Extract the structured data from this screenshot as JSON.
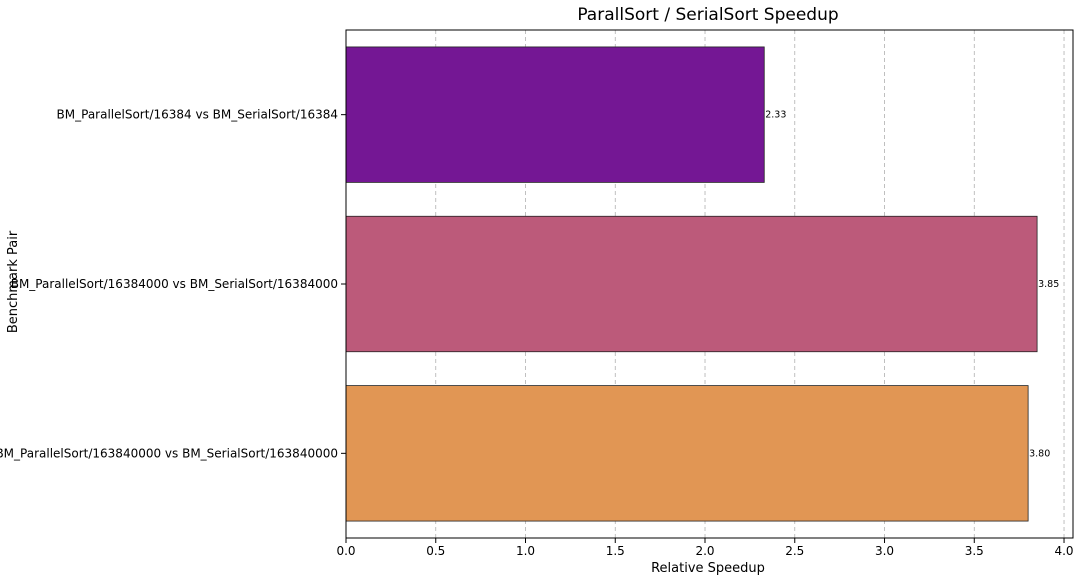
{
  "chart_data": {
    "type": "bar",
    "orientation": "horizontal",
    "title": "ParallSort / SerialSort Speedup",
    "xlabel": "Relative Speedup",
    "ylabel": "Benchmark Pair",
    "xlim": [
      0,
      4.05
    ],
    "x_ticks": [
      "0.0",
      "0.5",
      "1.0",
      "1.5",
      "2.0",
      "2.5",
      "3.0",
      "3.5",
      "4.0"
    ],
    "grid": "x-dashed",
    "categories": [
      "BM_ParallelSort/16384 vs BM_SerialSort/16384",
      "BM_ParallelSort/16384000 vs BM_SerialSort/16384000",
      "BM_ParallelSort/163840000 vs BM_SerialSort/163840000"
    ],
    "values": [
      2.33,
      3.85,
      3.8
    ],
    "value_labels": [
      "2.33",
      "3.85",
      "3.80"
    ],
    "colors": [
      "#741794",
      "#bc5a7a",
      "#e19654"
    ]
  }
}
